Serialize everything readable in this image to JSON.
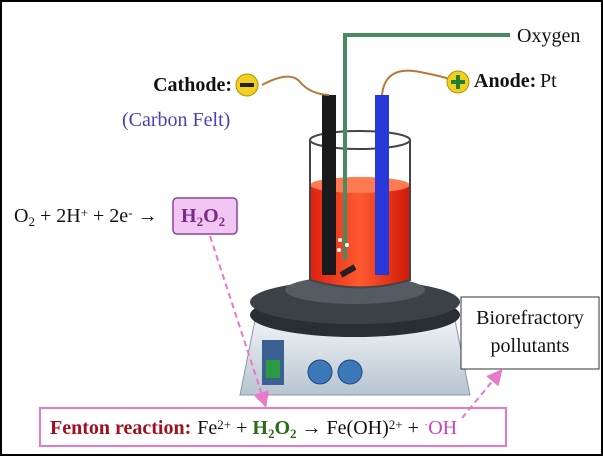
{
  "labels": {
    "oxygen": "Oxygen",
    "cathode": "Cathode:",
    "cathode_material": "(Carbon Felt)",
    "anode": "Anode:",
    "anode_material": "Pt",
    "pollutants": [
      "Biorefractory",
      "pollutants"
    ]
  },
  "equation": [
    {
      "text": "O"
    },
    {
      "text": "2",
      "style": "sub"
    },
    {
      "text": " + 2H"
    },
    {
      "text": "+",
      "style": "sup"
    },
    {
      "text": " + 2e"
    },
    {
      "text": "-",
      "style": "sup"
    },
    {
      "text": " →"
    }
  ],
  "product": [
    {
      "text": "H"
    },
    {
      "text": "2",
      "style": "sub"
    },
    {
      "text": "O"
    },
    {
      "text": "2",
      "style": "sub"
    }
  ],
  "fenton": {
    "title": "Fenton reaction:",
    "parts": [
      {
        "text": "Fe"
      },
      {
        "text": "2+",
        "style": "sup"
      },
      {
        "text": " + "
      },
      {
        "text": "H",
        "style": "green"
      },
      {
        "text": "2",
        "style": "green-sub"
      },
      {
        "text": "O",
        "style": "green"
      },
      {
        "text": "2",
        "style": "green-sub"
      },
      {
        "text": " → Fe(OH)"
      },
      {
        "text": "2+",
        "style": "sup"
      },
      {
        "text": " + "
      },
      {
        "text": "·",
        "style": "pink-sup"
      },
      {
        "text": "OH",
        "style": "pink"
      }
    ]
  }
}
